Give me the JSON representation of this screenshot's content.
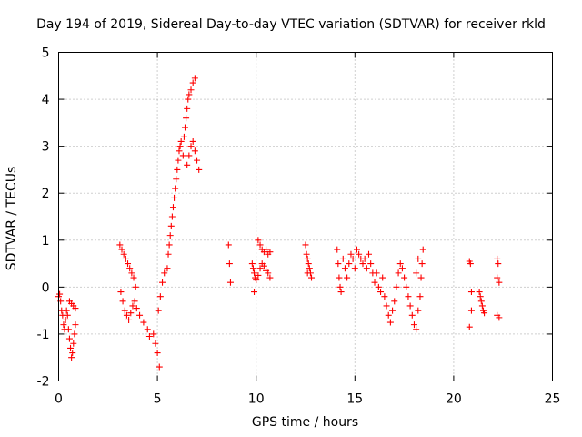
{
  "chart_data": {
    "type": "scatter",
    "title": "Day 194 of 2019, Sidereal Day-to-day VTEC variation (SDTVAR) for receiver rkld",
    "xlabel": "GPS time / hours",
    "ylabel": "SDTVAR / TECUs",
    "xlim": [
      0,
      25
    ],
    "ylim": [
      -2,
      5
    ],
    "xticks": [
      0,
      5,
      10,
      15,
      20,
      25
    ],
    "yticks": [
      -2,
      -1,
      0,
      1,
      2,
      3,
      4,
      5
    ],
    "grid": true,
    "marker": "+",
    "color": "#ff0000",
    "series": [
      {
        "name": "SDTVAR",
        "points": [
          [
            0.0,
            -0.2
          ],
          [
            0.05,
            -0.15
          ],
          [
            0.1,
            -0.3
          ],
          [
            0.15,
            -0.5
          ],
          [
            0.2,
            -0.6
          ],
          [
            0.25,
            -0.8
          ],
          [
            0.3,
            -0.9
          ],
          [
            0.35,
            -0.7
          ],
          [
            0.4,
            -0.5
          ],
          [
            0.45,
            -0.6
          ],
          [
            0.5,
            -0.9
          ],
          [
            0.55,
            -1.1
          ],
          [
            0.6,
            -1.3
          ],
          [
            0.65,
            -1.5
          ],
          [
            0.7,
            -1.4
          ],
          [
            0.75,
            -1.2
          ],
          [
            0.8,
            -1.0
          ],
          [
            0.85,
            -0.8
          ],
          [
            0.55,
            -0.3
          ],
          [
            0.65,
            -0.35
          ],
          [
            0.75,
            -0.4
          ],
          [
            0.85,
            -0.45
          ],
          [
            3.1,
            0.9
          ],
          [
            3.2,
            0.8
          ],
          [
            3.3,
            0.7
          ],
          [
            3.4,
            0.6
          ],
          [
            3.5,
            0.5
          ],
          [
            3.6,
            0.4
          ],
          [
            3.7,
            0.3
          ],
          [
            3.8,
            0.2
          ],
          [
            3.9,
            0.0
          ],
          [
            3.15,
            -0.1
          ],
          [
            3.25,
            -0.3
          ],
          [
            3.35,
            -0.5
          ],
          [
            3.45,
            -0.6
          ],
          [
            3.55,
            -0.7
          ],
          [
            3.65,
            -0.55
          ],
          [
            3.75,
            -0.4
          ],
          [
            3.85,
            -0.3
          ],
          [
            3.95,
            -0.45
          ],
          [
            4.1,
            -0.6
          ],
          [
            4.3,
            -0.75
          ],
          [
            4.5,
            -0.9
          ],
          [
            4.6,
            -1.05
          ],
          [
            4.8,
            -1.0
          ],
          [
            4.9,
            -1.2
          ],
          [
            5.0,
            -1.4
          ],
          [
            5.1,
            -1.7
          ],
          [
            5.05,
            -0.5
          ],
          [
            5.15,
            -0.2
          ],
          [
            5.25,
            0.1
          ],
          [
            5.35,
            0.3
          ],
          [
            5.5,
            0.4
          ],
          [
            5.55,
            0.7
          ],
          [
            5.6,
            0.9
          ],
          [
            5.65,
            1.1
          ],
          [
            5.7,
            1.3
          ],
          [
            5.75,
            1.5
          ],
          [
            5.8,
            1.7
          ],
          [
            5.85,
            1.9
          ],
          [
            5.9,
            2.1
          ],
          [
            5.95,
            2.3
          ],
          [
            6.0,
            2.5
          ],
          [
            6.05,
            2.7
          ],
          [
            6.1,
            2.9
          ],
          [
            6.15,
            3.0
          ],
          [
            6.2,
            3.1
          ],
          [
            6.3,
            2.8
          ],
          [
            6.35,
            3.2
          ],
          [
            6.4,
            3.4
          ],
          [
            6.45,
            3.6
          ],
          [
            6.5,
            3.8
          ],
          [
            6.55,
            4.0
          ],
          [
            6.6,
            4.1
          ],
          [
            6.7,
            4.2
          ],
          [
            6.8,
            4.35
          ],
          [
            6.9,
            4.45
          ],
          [
            6.5,
            2.6
          ],
          [
            6.6,
            2.8
          ],
          [
            6.7,
            3.0
          ],
          [
            6.8,
            3.1
          ],
          [
            6.9,
            2.9
          ],
          [
            7.0,
            2.7
          ],
          [
            7.1,
            2.5
          ],
          [
            8.6,
            0.9
          ],
          [
            8.65,
            0.5
          ],
          [
            8.7,
            0.1
          ],
          [
            9.8,
            0.5
          ],
          [
            9.85,
            0.4
          ],
          [
            9.9,
            0.3
          ],
          [
            9.95,
            0.2
          ],
          [
            10.0,
            0.15
          ],
          [
            10.1,
            0.25
          ],
          [
            10.2,
            0.4
          ],
          [
            10.3,
            0.5
          ],
          [
            10.4,
            0.45
          ],
          [
            10.5,
            0.35
          ],
          [
            10.6,
            0.3
          ],
          [
            10.7,
            0.2
          ],
          [
            10.1,
            1.0
          ],
          [
            10.2,
            0.9
          ],
          [
            10.3,
            0.8
          ],
          [
            10.4,
            0.75
          ],
          [
            10.5,
            0.8
          ],
          [
            10.6,
            0.7
          ],
          [
            10.7,
            0.75
          ],
          [
            9.9,
            -0.1
          ],
          [
            12.5,
            0.9
          ],
          [
            12.55,
            0.7
          ],
          [
            12.6,
            0.6
          ],
          [
            12.65,
            0.5
          ],
          [
            12.7,
            0.4
          ],
          [
            12.75,
            0.3
          ],
          [
            12.8,
            0.2
          ],
          [
            12.6,
            0.3
          ],
          [
            14.1,
            0.8
          ],
          [
            14.15,
            0.5
          ],
          [
            14.2,
            0.2
          ],
          [
            14.25,
            0.0
          ],
          [
            14.3,
            -0.1
          ],
          [
            14.4,
            0.6
          ],
          [
            14.5,
            0.4
          ],
          [
            14.6,
            0.2
          ],
          [
            14.7,
            0.5
          ],
          [
            14.8,
            0.7
          ],
          [
            14.9,
            0.6
          ],
          [
            15.0,
            0.4
          ],
          [
            15.1,
            0.8
          ],
          [
            15.2,
            0.7
          ],
          [
            15.3,
            0.6
          ],
          [
            15.4,
            0.5
          ],
          [
            15.5,
            0.6
          ],
          [
            15.6,
            0.4
          ],
          [
            15.7,
            0.7
          ],
          [
            15.8,
            0.5
          ],
          [
            15.9,
            0.3
          ],
          [
            16.0,
            0.1
          ],
          [
            16.1,
            0.3
          ],
          [
            16.2,
            0.0
          ],
          [
            16.3,
            -0.1
          ],
          [
            16.4,
            0.2
          ],
          [
            16.5,
            -0.2
          ],
          [
            16.6,
            -0.4
          ],
          [
            16.7,
            -0.6
          ],
          [
            16.8,
            -0.75
          ],
          [
            16.9,
            -0.5
          ],
          [
            17.0,
            -0.3
          ],
          [
            17.1,
            0.0
          ],
          [
            17.2,
            0.3
          ],
          [
            17.3,
            0.5
          ],
          [
            17.4,
            0.4
          ],
          [
            17.5,
            0.2
          ],
          [
            17.6,
            0.0
          ],
          [
            17.7,
            -0.2
          ],
          [
            17.8,
            -0.4
          ],
          [
            17.9,
            -0.6
          ],
          [
            18.0,
            -0.8
          ],
          [
            18.1,
            -0.9
          ],
          [
            18.2,
            -0.5
          ],
          [
            18.3,
            -0.2
          ],
          [
            18.35,
            0.2
          ],
          [
            18.4,
            0.5
          ],
          [
            18.45,
            0.8
          ],
          [
            18.2,
            0.6
          ],
          [
            18.1,
            0.3
          ],
          [
            20.8,
            0.55
          ],
          [
            20.85,
            0.5
          ],
          [
            20.9,
            -0.1
          ],
          [
            20.8,
            -0.85
          ],
          [
            20.9,
            -0.5
          ],
          [
            21.3,
            -0.1
          ],
          [
            21.35,
            -0.2
          ],
          [
            21.4,
            -0.3
          ],
          [
            21.45,
            -0.4
          ],
          [
            21.5,
            -0.5
          ],
          [
            21.55,
            -0.55
          ],
          [
            22.2,
            0.6
          ],
          [
            22.25,
            0.5
          ],
          [
            22.2,
            0.2
          ],
          [
            22.3,
            0.1
          ],
          [
            22.2,
            -0.6
          ],
          [
            22.3,
            -0.65
          ]
        ]
      }
    ]
  }
}
